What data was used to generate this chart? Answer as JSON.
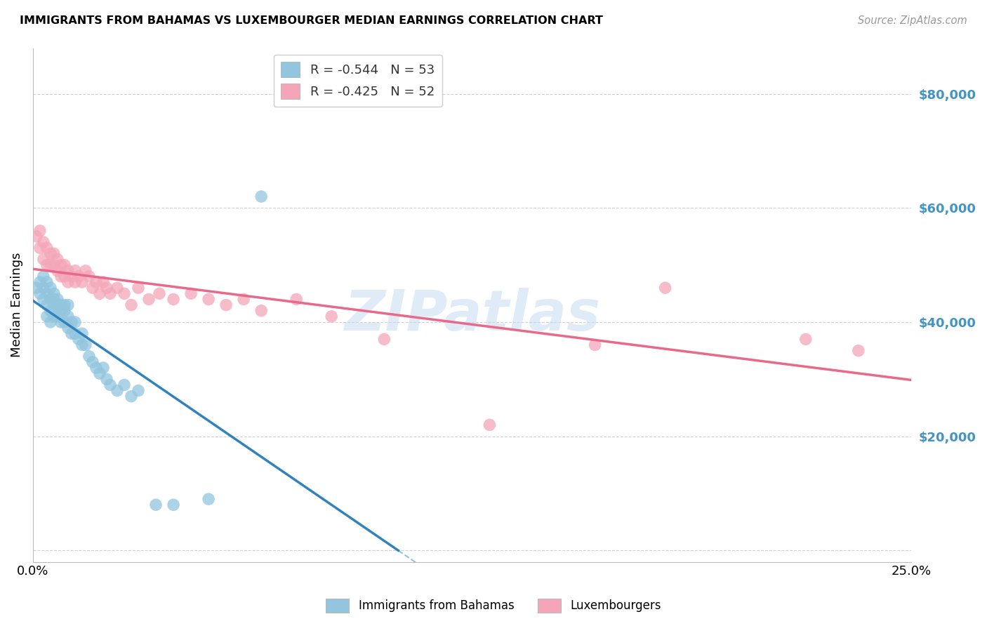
{
  "title": "IMMIGRANTS FROM BAHAMAS VS LUXEMBOURGER MEDIAN EARNINGS CORRELATION CHART",
  "source": "Source: ZipAtlas.com",
  "ylabel": "Median Earnings",
  "yticks": [
    0,
    20000,
    40000,
    60000,
    80000
  ],
  "ylim": [
    -2000,
    88000
  ],
  "xlim": [
    0,
    0.25
  ],
  "legend_r1": "R = -0.544",
  "legend_n1": "N = 53",
  "legend_r2": "R = -0.425",
  "legend_n2": "N = 52",
  "color_blue": "#92c5de",
  "color_pink": "#f4a6b8",
  "color_blue_line": "#3182bd",
  "color_pink_line": "#e8698a",
  "color_blue_text": "#4393c3",
  "watermark_color": "#c6dbef",
  "background_color": "#ffffff",
  "grid_color": "#d0d0d0",
  "blue_x": [
    0.001,
    0.002,
    0.002,
    0.003,
    0.003,
    0.003,
    0.004,
    0.004,
    0.004,
    0.004,
    0.005,
    0.005,
    0.005,
    0.005,
    0.006,
    0.006,
    0.006,
    0.006,
    0.007,
    0.007,
    0.007,
    0.008,
    0.008,
    0.008,
    0.009,
    0.009,
    0.009,
    0.01,
    0.01,
    0.01,
    0.011,
    0.011,
    0.012,
    0.012,
    0.013,
    0.014,
    0.014,
    0.015,
    0.016,
    0.017,
    0.018,
    0.019,
    0.02,
    0.021,
    0.022,
    0.024,
    0.026,
    0.028,
    0.03,
    0.035,
    0.04,
    0.05,
    0.065
  ],
  "blue_y": [
    46000,
    47000,
    45000,
    48000,
    46000,
    44000,
    47000,
    45000,
    43000,
    41000,
    46000,
    44000,
    42000,
    40000,
    45000,
    44000,
    43000,
    41000,
    44000,
    43000,
    41000,
    43000,
    42000,
    40000,
    43000,
    42000,
    40000,
    43000,
    41000,
    39000,
    40000,
    38000,
    40000,
    38000,
    37000,
    38000,
    36000,
    36000,
    34000,
    33000,
    32000,
    31000,
    32000,
    30000,
    29000,
    28000,
    29000,
    27000,
    28000,
    8000,
    8000,
    9000,
    62000
  ],
  "pink_x": [
    0.001,
    0.002,
    0.002,
    0.003,
    0.003,
    0.004,
    0.004,
    0.005,
    0.005,
    0.006,
    0.006,
    0.007,
    0.007,
    0.008,
    0.008,
    0.009,
    0.009,
    0.01,
    0.01,
    0.011,
    0.012,
    0.012,
    0.013,
    0.014,
    0.015,
    0.016,
    0.017,
    0.018,
    0.019,
    0.02,
    0.021,
    0.022,
    0.024,
    0.026,
    0.028,
    0.03,
    0.033,
    0.036,
    0.04,
    0.045,
    0.05,
    0.055,
    0.06,
    0.065,
    0.075,
    0.085,
    0.1,
    0.13,
    0.16,
    0.18,
    0.22,
    0.235
  ],
  "pink_y": [
    55000,
    56000,
    53000,
    54000,
    51000,
    53000,
    50000,
    52000,
    50000,
    52000,
    50000,
    51000,
    49000,
    50000,
    48000,
    50000,
    48000,
    49000,
    47000,
    48000,
    49000,
    47000,
    48000,
    47000,
    49000,
    48000,
    46000,
    47000,
    45000,
    47000,
    46000,
    45000,
    46000,
    45000,
    43000,
    46000,
    44000,
    45000,
    44000,
    45000,
    44000,
    43000,
    44000,
    42000,
    44000,
    41000,
    37000,
    22000,
    36000,
    46000,
    37000,
    35000
  ]
}
